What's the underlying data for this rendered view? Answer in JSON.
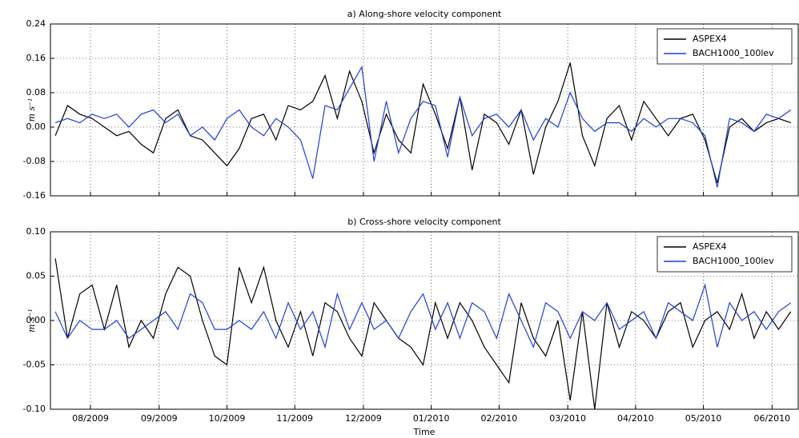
{
  "chart_data": [
    {
      "type": "line",
      "title": "a) Along-shore velocity component",
      "ylabel": "m s⁻¹",
      "xlim": [
        2009.534,
        2010.449
      ],
      "xticks": [
        2009.583,
        2009.667,
        2009.75,
        2009.833,
        2009.917,
        2010.0,
        2010.083,
        2010.167,
        2010.25,
        2010.333,
        2010.417
      ],
      "ylim": [
        -0.16,
        0.24
      ],
      "yticks": [
        -0.16,
        -0.08,
        {
          "value": 0,
          "label": "0.00"
        },
        0.08,
        0.16,
        0.24
      ],
      "grid": true,
      "legend": "upper right",
      "x": [
        2009.54,
        2009.555,
        2009.57,
        2009.585,
        2009.6,
        2009.615,
        2009.63,
        2009.645,
        2009.66,
        2009.675,
        2009.69,
        2009.705,
        2009.72,
        2009.735,
        2009.75,
        2009.765,
        2009.78,
        2009.795,
        2009.81,
        2009.825,
        2009.84,
        2009.855,
        2009.87,
        2009.885,
        2009.9,
        2009.915,
        2009.93,
        2009.945,
        2009.96,
        2009.975,
        2009.99,
        2010.005,
        2010.02,
        2010.035,
        2010.05,
        2010.065,
        2010.08,
        2010.095,
        2010.11,
        2010.125,
        2010.14,
        2010.155,
        2010.17,
        2010.185,
        2010.2,
        2010.215,
        2010.23,
        2010.245,
        2010.26,
        2010.275,
        2010.29,
        2010.305,
        2010.32,
        2010.335,
        2010.35,
        2010.365,
        2010.38,
        2010.395,
        2010.41,
        2010.425,
        2010.44
      ],
      "series": [
        {
          "name": "ASPEX4",
          "color": "#000000",
          "values": [
            -0.02,
            0.05,
            0.03,
            0.02,
            0.0,
            -0.02,
            -0.01,
            -0.04,
            -0.06,
            0.02,
            0.04,
            -0.02,
            -0.03,
            -0.06,
            -0.09,
            -0.05,
            0.02,
            0.03,
            -0.03,
            0.05,
            0.04,
            0.06,
            0.12,
            0.02,
            0.13,
            0.06,
            -0.06,
            0.03,
            -0.03,
            -0.06,
            0.1,
            0.03,
            -0.05,
            0.07,
            -0.1,
            0.03,
            0.01,
            -0.04,
            0.04,
            -0.11,
            0.0,
            0.06,
            0.15,
            -0.02,
            -0.09,
            0.02,
            0.05,
            -0.03,
            0.06,
            0.02,
            -0.02,
            0.02,
            0.03,
            -0.03,
            -0.13,
            0.0,
            0.02,
            -0.01,
            0.01,
            0.02,
            0.01
          ]
        },
        {
          "name": "BACH1000_100lev",
          "color": "#1f3fd6",
          "values": [
            0.01,
            0.02,
            0.01,
            0.03,
            0.02,
            0.03,
            0.0,
            0.03,
            0.04,
            0.01,
            0.03,
            -0.02,
            0.0,
            -0.03,
            0.02,
            0.04,
            0.0,
            -0.02,
            0.02,
            0.0,
            -0.03,
            -0.12,
            0.05,
            0.04,
            0.09,
            0.14,
            -0.08,
            0.06,
            -0.06,
            0.02,
            0.06,
            0.05,
            -0.07,
            0.07,
            -0.02,
            0.02,
            0.03,
            0.0,
            0.04,
            -0.03,
            0.02,
            0.0,
            0.08,
            0.02,
            -0.01,
            0.01,
            0.01,
            -0.01,
            0.02,
            0.0,
            0.02,
            0.02,
            0.01,
            -0.02,
            -0.14,
            0.02,
            0.01,
            -0.01,
            0.03,
            0.02,
            0.04
          ]
        }
      ]
    },
    {
      "type": "line",
      "title": "b) Cross-shore velocity component",
      "ylabel": "m s⁻¹",
      "xlabel": "Time",
      "xlim": [
        2009.534,
        2010.449
      ],
      "xticks": [
        {
          "value": 2009.583,
          "label": "08/2009"
        },
        {
          "value": 2009.667,
          "label": "09/2009"
        },
        {
          "value": 2009.75,
          "label": "10/2009"
        },
        {
          "value": 2009.833,
          "label": "11/2009"
        },
        {
          "value": 2009.917,
          "label": "12/2009"
        },
        {
          "value": 2010.0,
          "label": "01/2010"
        },
        {
          "value": 2010.083,
          "label": "02/2010"
        },
        {
          "value": 2010.167,
          "label": "03/2010"
        },
        {
          "value": 2010.25,
          "label": "04/2010"
        },
        {
          "value": 2010.333,
          "label": "05/2010"
        },
        {
          "value": 2010.417,
          "label": "06/2010"
        }
      ],
      "ylim": [
        -0.1,
        0.1
      ],
      "yticks": [
        {
          "value": -0.1,
          "label": "-0.10"
        },
        -0.05,
        {
          "value": 0,
          "label": "0.00"
        },
        0.05,
        {
          "value": 0.1,
          "label": "0.10"
        }
      ],
      "grid": true,
      "legend": "upper right",
      "x": [
        2009.54,
        2009.555,
        2009.57,
        2009.585,
        2009.6,
        2009.615,
        2009.63,
        2009.645,
        2009.66,
        2009.675,
        2009.69,
        2009.705,
        2009.72,
        2009.735,
        2009.75,
        2009.765,
        2009.78,
        2009.795,
        2009.81,
        2009.825,
        2009.84,
        2009.855,
        2009.87,
        2009.885,
        2009.9,
        2009.915,
        2009.93,
        2009.945,
        2009.96,
        2009.975,
        2009.99,
        2010.005,
        2010.02,
        2010.035,
        2010.05,
        2010.065,
        2010.08,
        2010.095,
        2010.11,
        2010.125,
        2010.14,
        2010.155,
        2010.17,
        2010.185,
        2010.2,
        2010.215,
        2010.23,
        2010.245,
        2010.26,
        2010.275,
        2010.29,
        2010.305,
        2010.32,
        2010.335,
        2010.35,
        2010.365,
        2010.38,
        2010.395,
        2010.41,
        2010.425,
        2010.44
      ],
      "series": [
        {
          "name": "ASPEX4",
          "color": "#000000",
          "values": [
            0.07,
            -0.02,
            0.03,
            0.04,
            -0.01,
            0.04,
            -0.03,
            0.0,
            -0.02,
            0.03,
            0.06,
            0.05,
            0.0,
            -0.04,
            -0.05,
            0.06,
            0.02,
            0.06,
            0.0,
            -0.03,
            0.01,
            -0.04,
            0.02,
            0.01,
            -0.02,
            -0.04,
            0.02,
            0.0,
            -0.02,
            -0.03,
            -0.05,
            0.02,
            -0.02,
            0.02,
            0.0,
            -0.03,
            -0.05,
            -0.07,
            0.02,
            -0.02,
            -0.04,
            0.0,
            -0.09,
            0.01,
            -0.1,
            0.02,
            -0.03,
            0.01,
            0.0,
            -0.02,
            0.01,
            0.02,
            -0.03,
            0.0,
            0.01,
            -0.01,
            0.03,
            -0.02,
            0.01,
            -0.01,
            0.01
          ]
        },
        {
          "name": "BACH1000_100lev",
          "color": "#1f3fd6",
          "values": [
            0.01,
            -0.02,
            0.0,
            -0.01,
            -0.01,
            0.0,
            -0.02,
            -0.01,
            0.0,
            0.01,
            -0.01,
            0.03,
            0.02,
            -0.01,
            -0.01,
            0.0,
            -0.01,
            0.01,
            -0.02,
            0.02,
            -0.01,
            0.01,
            -0.03,
            0.03,
            -0.01,
            0.02,
            -0.01,
            0.0,
            -0.02,
            0.01,
            0.03,
            -0.01,
            0.02,
            -0.02,
            0.02,
            0.01,
            -0.02,
            0.03,
            0.0,
            -0.03,
            0.02,
            0.01,
            -0.02,
            0.01,
            0.0,
            0.02,
            -0.01,
            0.0,
            0.01,
            -0.02,
            0.02,
            0.01,
            0.0,
            0.04,
            -0.03,
            0.02,
            0.0,
            0.01,
            -0.01,
            0.01,
            0.02
          ]
        }
      ]
    }
  ]
}
